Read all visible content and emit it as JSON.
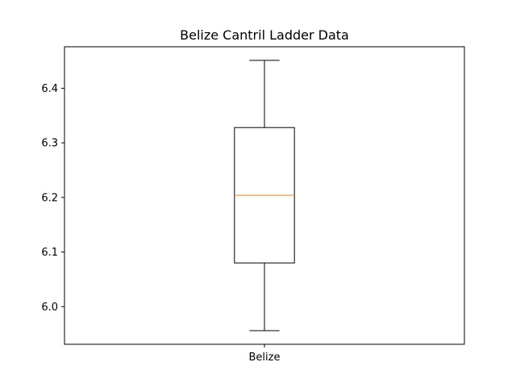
{
  "chart_data": {
    "type": "box",
    "title": "Belize Cantril Ladder Data",
    "xlabel": "",
    "ylabel": "",
    "categories": [
      "Belize"
    ],
    "boxes": [
      {
        "label": "Belize",
        "whisker_low": 5.956,
        "q1": 6.08,
        "median": 6.204,
        "q3": 6.328,
        "whisker_high": 6.451
      }
    ],
    "yticks": [
      6.0,
      6.1,
      6.2,
      6.3,
      6.4
    ],
    "ytick_labels": [
      "6.0",
      "6.1",
      "6.2",
      "6.3",
      "6.4"
    ],
    "ylim": [
      5.931,
      6.476
    ],
    "grid": false,
    "colors": {
      "box": "#000000",
      "median": "#ff7f0e",
      "whisker": "#000000"
    }
  }
}
